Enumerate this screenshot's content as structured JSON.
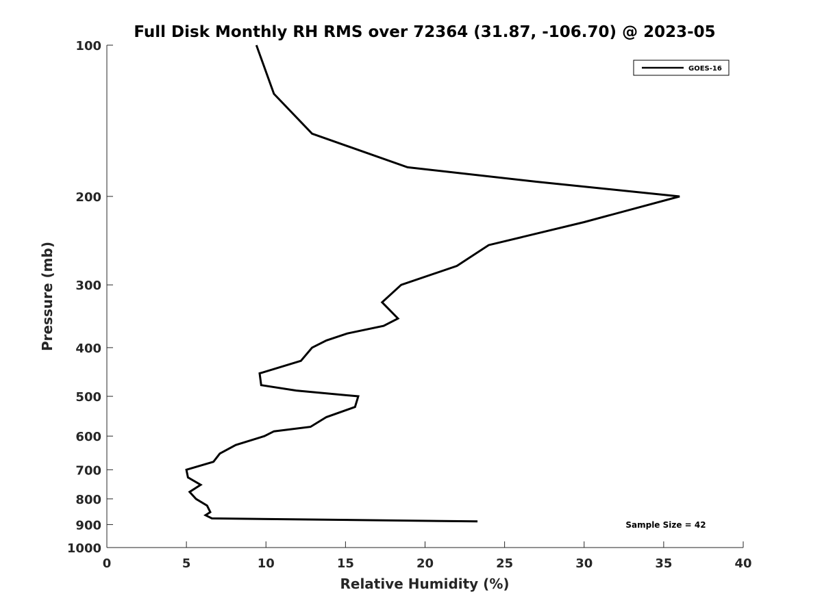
{
  "chart_data": {
    "type": "line",
    "title": "Full Disk Monthly RH RMS over 72364 (31.87, -106.70) @ 2023-05",
    "xlabel": "Relative Humidity (%)",
    "ylabel": "Pressure (mb)",
    "xlim": [
      0,
      40
    ],
    "ylim": [
      100,
      1000
    ],
    "y_scale": "log",
    "y_inverted": true,
    "x_ticks": [
      0,
      5,
      10,
      15,
      20,
      25,
      30,
      35,
      40
    ],
    "x_tick_labels": [
      "0",
      "5",
      "10",
      "15",
      "20",
      "25",
      "30",
      "35",
      "40"
    ],
    "y_ticks": [
      100,
      200,
      300,
      400,
      500,
      600,
      700,
      800,
      900,
      1000
    ],
    "y_tick_labels": [
      "100",
      "200",
      "300",
      "400",
      "500",
      "600",
      "700",
      "800",
      "900",
      "1000"
    ],
    "grid": false,
    "legend_position": "top-right",
    "series": [
      {
        "name": "GOES-16",
        "color": "#000000",
        "x": [
          9.4,
          10.5,
          12.9,
          18.9,
          27,
          36,
          30,
          24,
          22,
          18.5,
          17.3,
          18.3,
          17.4,
          15.1,
          13.8,
          12.9,
          12.2,
          9.6,
          9.7,
          11.9,
          15.8,
          15.6,
          13.8,
          12.8,
          10.5,
          9.9,
          8.1,
          7.1,
          6.7,
          5.0,
          5.1,
          5.9,
          5.2,
          5.6,
          6.3,
          6.5,
          6.2,
          6.6,
          23.3
        ],
        "y": [
          100,
          125,
          150,
          175,
          187,
          200,
          225,
          250,
          275,
          300,
          325,
          350,
          362,
          375,
          387,
          400,
          425,
          450,
          475,
          487,
          500,
          525,
          550,
          575,
          587,
          600,
          625,
          650,
          675,
          700,
          725,
          750,
          775,
          800,
          825,
          850,
          862,
          875,
          887
        ]
      }
    ],
    "annotations": [
      "Sample Size = 42"
    ]
  }
}
